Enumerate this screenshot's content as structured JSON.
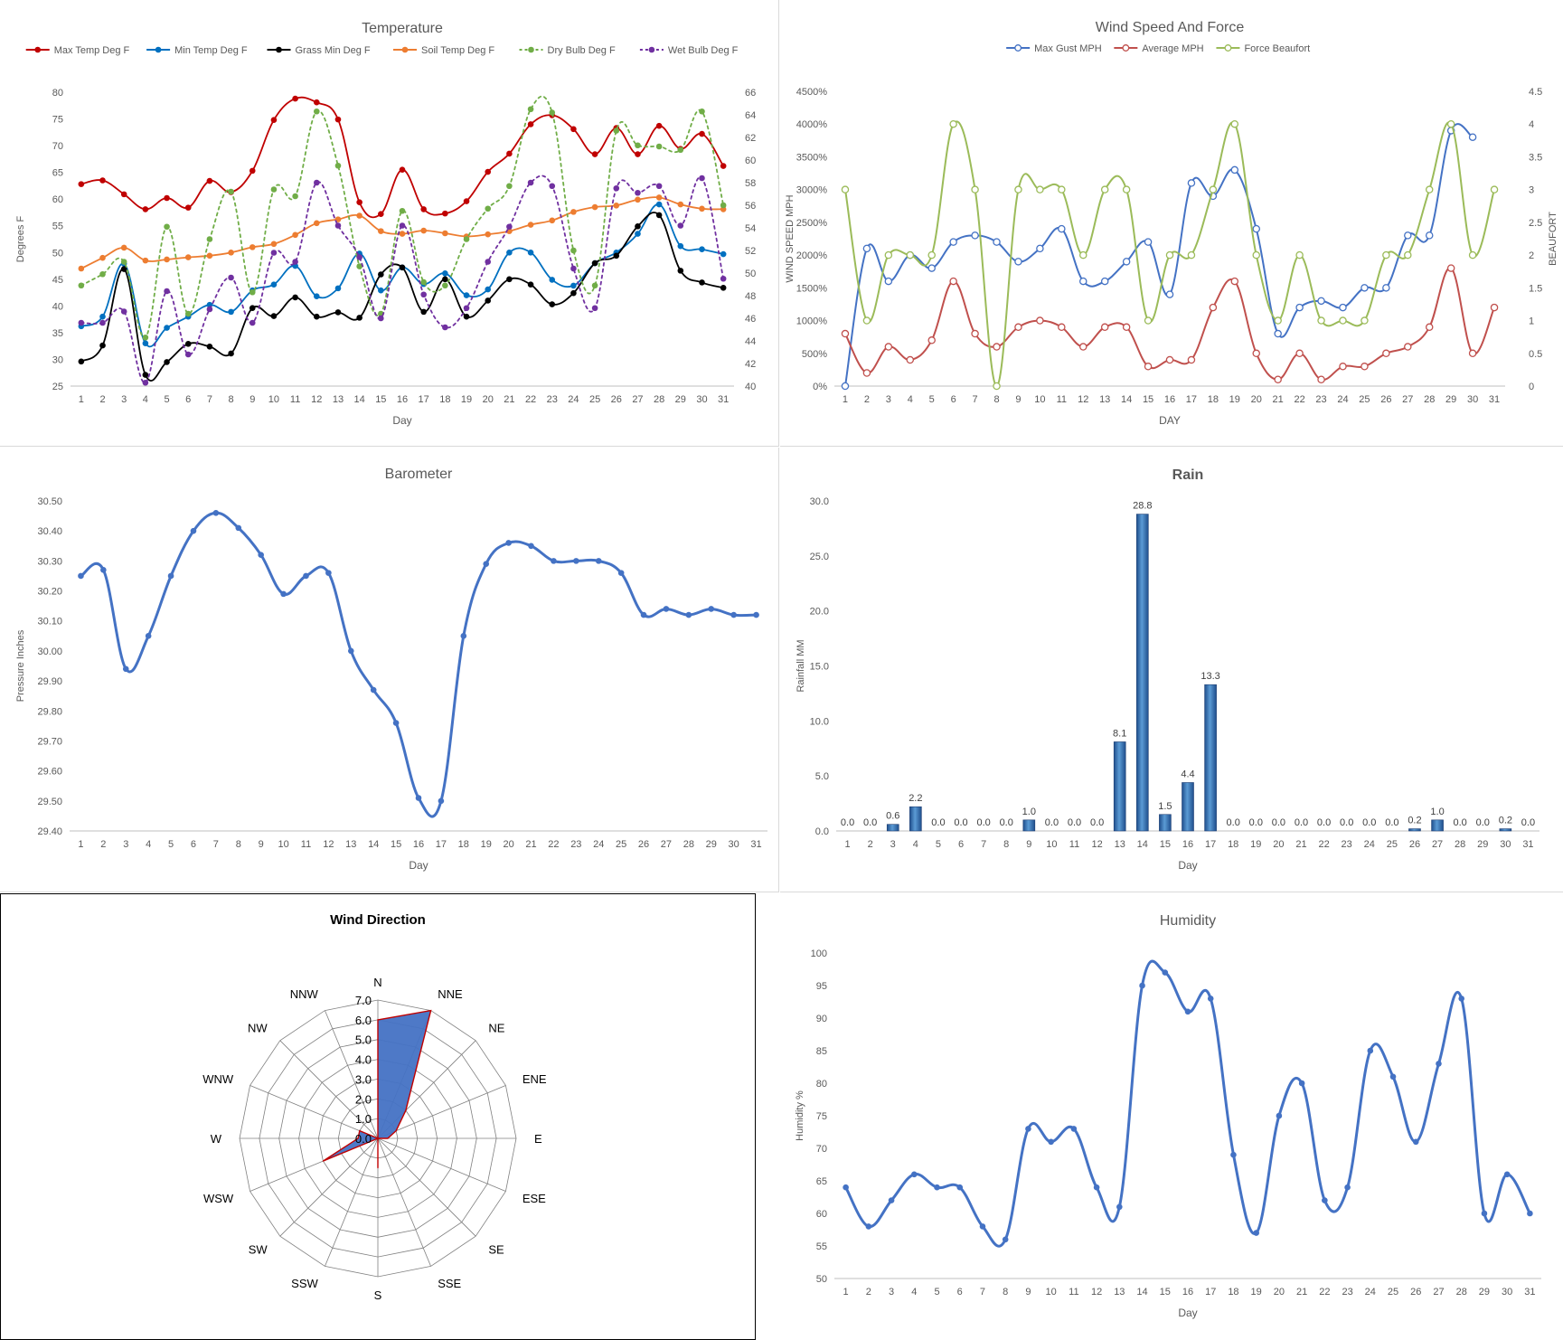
{
  "chart_data": [
    {
      "id": "temperature",
      "type": "line",
      "title": "Temperature",
      "xlabel": "Day",
      "ylabel": "Degrees F",
      "ylim": [
        25,
        80
      ],
      "y2lim": [
        40,
        66
      ],
      "x": [
        1,
        2,
        3,
        4,
        5,
        6,
        7,
        8,
        9,
        10,
        11,
        12,
        13,
        14,
        15,
        16,
        17,
        18,
        19,
        20,
        21,
        22,
        23,
        24,
        25,
        26,
        27,
        28,
        29,
        30,
        31
      ],
      "yticks": [
        25,
        30,
        35,
        40,
        45,
        50,
        55,
        60,
        65,
        70,
        75,
        80
      ],
      "y2ticks": [
        40,
        42,
        44,
        46,
        48,
        50,
        52,
        54,
        56,
        58,
        60,
        62,
        64,
        66
      ],
      "legend": "top",
      "series": [
        {
          "name": "Max Temp Deg F",
          "color": "#c00000",
          "dash": false,
          "axis": "left",
          "values": [
            62.8,
            63.5,
            60.9,
            58.1,
            60.2,
            58.4,
            63.4,
            61.3,
            65.3,
            74.8,
            78.8,
            78.1,
            74.9,
            59.4,
            57.2,
            65.5,
            58.1,
            57.3,
            59.6,
            65.1,
            68.5,
            74.0,
            75.7,
            73.1,
            68.4,
            73.3,
            68.4,
            73.7,
            69.4,
            72.2,
            66.2
          ]
        },
        {
          "name": "Min Temp Deg F",
          "color": "#0070c0",
          "dash": false,
          "axis": "left",
          "values": [
            36.2,
            38.0,
            47.9,
            33.0,
            35.9,
            38.0,
            40.2,
            38.9,
            42.9,
            44.0,
            47.5,
            41.8,
            43.3,
            49.8,
            42.9,
            47.2,
            44.1,
            46.1,
            42.0,
            43.1,
            50.0,
            50.0,
            44.9,
            43.8,
            48.0,
            50.0,
            53.5,
            59.0,
            51.2,
            50.6,
            49.7
          ]
        },
        {
          "name": "Grass Min Deg F",
          "color": "#000000",
          "dash": false,
          "axis": "left",
          "values": [
            29.6,
            32.6,
            46.9,
            27.1,
            29.5,
            32.9,
            32.4,
            31.1,
            39.6,
            38.1,
            41.6,
            38.0,
            38.8,
            37.8,
            45.9,
            47.2,
            38.9,
            45.0,
            38.0,
            41.0,
            45.0,
            44.0,
            40.3,
            42.4,
            48.0,
            49.4,
            54.9,
            57.0,
            46.6,
            44.4,
            43.4
          ]
        },
        {
          "name": "Soil Temp Deg F",
          "color": "#ed7d31",
          "dash": false,
          "axis": "left",
          "values": [
            47.0,
            49.0,
            50.9,
            48.5,
            48.7,
            49.1,
            49.4,
            50.0,
            51.0,
            51.6,
            53.3,
            55.5,
            56.2,
            56.9,
            54.0,
            53.5,
            54.1,
            53.6,
            53.0,
            53.4,
            54.0,
            55.2,
            56.0,
            57.6,
            58.5,
            58.8,
            59.9,
            60.3,
            59.0,
            58.2,
            58.1
          ]
        },
        {
          "name": "Dry Bulb Deg F",
          "color": "#70ad47",
          "dash": true,
          "axis": "right",
          "values": [
            48.9,
            49.9,
            51.0,
            44.3,
            54.1,
            46.4,
            53.0,
            57.2,
            48.3,
            57.4,
            56.8,
            64.3,
            59.5,
            50.6,
            46.4,
            55.5,
            49.2,
            48.9,
            53.0,
            55.7,
            57.7,
            64.5,
            64.2,
            52.0,
            48.9,
            62.6,
            61.3,
            61.2,
            60.9,
            64.3,
            56.0
          ]
        },
        {
          "name": "Wet Bulb Deg F",
          "color": "#7030a0",
          "dash": true,
          "axis": "right",
          "values": [
            45.6,
            45.6,
            46.6,
            40.3,
            48.4,
            42.8,
            46.8,
            49.6,
            45.6,
            51.8,
            51.0,
            58.0,
            54.2,
            51.4,
            46.0,
            54.2,
            48.1,
            45.2,
            46.9,
            51.0,
            54.1,
            58.0,
            57.7,
            50.4,
            46.9,
            57.5,
            57.1,
            57.7,
            54.2,
            58.4,
            49.5
          ]
        }
      ]
    },
    {
      "id": "wind",
      "type": "line",
      "title": "Wind Speed And Force",
      "xlabel": "DAY",
      "ylabel": "WIND SPEED MPH",
      "y2label": "BEAUFORT",
      "ylim": [
        0,
        4500
      ],
      "y2lim": [
        0,
        4.5
      ],
      "yticks": [
        "0%",
        "500%",
        "1000%",
        "1500%",
        "2000%",
        "2500%",
        "3000%",
        "3500%",
        "4000%",
        "4500%"
      ],
      "y2ticks": [
        "0",
        "0.5",
        "1",
        "1.5",
        "2",
        "2.5",
        "3",
        "3.5",
        "4",
        "4.5"
      ],
      "x": [
        1,
        2,
        3,
        4,
        5,
        6,
        7,
        8,
        9,
        10,
        11,
        12,
        13,
        14,
        15,
        16,
        17,
        18,
        19,
        20,
        21,
        22,
        23,
        24,
        25,
        26,
        27,
        28,
        29,
        30,
        31
      ],
      "legend": "top",
      "series": [
        {
          "name": "Max Gust MPH",
          "color": "#4472c4",
          "axis": "left",
          "values": [
            0,
            2100,
            1600,
            2000,
            1800,
            2200,
            2300,
            2200,
            1900,
            2100,
            2400,
            1600,
            1600,
            1900,
            2200,
            1400,
            3100,
            2900,
            3300,
            2400,
            800,
            1200,
            1300,
            1200,
            1500,
            1500,
            2300,
            2300,
            3900,
            3800,
            null
          ]
        },
        {
          "name": "Average MPH",
          "color": "#c0504d",
          "axis": "left",
          "values": [
            800,
            200,
            600,
            400,
            700,
            1600,
            800,
            600,
            900,
            1000,
            900,
            600,
            900,
            900,
            300,
            400,
            400,
            1200,
            1600,
            500,
            100,
            500,
            100,
            300,
            300,
            500,
            600,
            900,
            1800,
            500,
            1200
          ]
        },
        {
          "name": "Force Beaufort",
          "color": "#9bbb59",
          "axis": "right",
          "values": [
            3,
            1,
            2,
            2,
            2,
            4,
            3,
            0,
            3,
            3,
            3,
            2,
            3,
            3,
            1,
            2,
            2,
            3,
            4,
            2,
            1,
            2,
            1,
            1,
            1,
            2,
            2,
            3,
            4,
            2,
            3
          ]
        }
      ]
    },
    {
      "id": "barometer",
      "type": "line",
      "title": "Barometer",
      "xlabel": "Day",
      "ylabel": "Pressure Inches",
      "ylim": [
        29.4,
        30.5
      ],
      "yticks": [
        "29.40",
        "29.50",
        "29.60",
        "29.70",
        "29.80",
        "29.90",
        "30.00",
        "30.10",
        "30.20",
        "30.30",
        "30.40",
        "30.50"
      ],
      "x": [
        1,
        2,
        3,
        4,
        5,
        6,
        7,
        8,
        9,
        10,
        11,
        12,
        13,
        14,
        15,
        16,
        17,
        18,
        19,
        20,
        21,
        22,
        23,
        24,
        25,
        26,
        27,
        28,
        29,
        30,
        31
      ],
      "series": [
        {
          "name": "",
          "color": "#4472c4",
          "values": [
            30.25,
            30.27,
            29.94,
            30.05,
            30.25,
            30.4,
            30.46,
            30.41,
            30.32,
            30.19,
            30.25,
            30.26,
            30.0,
            29.87,
            29.76,
            29.51,
            29.5,
            30.05,
            30.29,
            30.36,
            30.35,
            30.3,
            30.3,
            30.3,
            30.26,
            30.12,
            30.14,
            30.12,
            30.14,
            30.12,
            30.12
          ]
        }
      ]
    },
    {
      "id": "rain",
      "type": "bar",
      "title": "Rain",
      "xlabel": "Day",
      "ylabel": "Rainfall MM",
      "ylim": [
        0,
        30
      ],
      "yticks": [
        "0.0",
        "5.0",
        "10.0",
        "15.0",
        "20.0",
        "25.0",
        "30.0"
      ],
      "categories": [
        "1",
        "2",
        "3",
        "4",
        "5",
        "6",
        "7",
        "8",
        "9",
        "10",
        "11",
        "12",
        "13",
        "14",
        "15",
        "16",
        "17",
        "18",
        "19",
        "20",
        "21",
        "22",
        "23",
        "24",
        "25",
        "26",
        "27",
        "28",
        "29",
        "30",
        "31"
      ],
      "values": [
        0.0,
        0.0,
        0.6,
        2.2,
        0.0,
        0.0,
        0.0,
        0.0,
        1.0,
        0.0,
        0.0,
        0.0,
        8.1,
        28.8,
        1.5,
        4.4,
        13.3,
        0.0,
        0.0,
        0.0,
        0.0,
        0.0,
        0.0,
        0.0,
        0.0,
        0.2,
        1.0,
        0.0,
        0.0,
        0.2,
        0.0
      ],
      "labels": [
        "0.0",
        "0.0",
        "0.6",
        "2.2",
        "0.0",
        "0.0",
        "0.0",
        "0.0",
        "1.0",
        "0.0",
        "0.0",
        "0.0",
        "8.1",
        "28.8",
        "1.5",
        "4.4",
        "13.3",
        "0.0",
        "0.0",
        "0.0",
        "0.0",
        "0.0",
        "0.0",
        "0.0",
        "0.0",
        "0.2",
        "1.0",
        "0.0",
        "0.0",
        "0.2",
        "0.0"
      ],
      "color": "#2e5f9e"
    },
    {
      "id": "wind_direction",
      "type": "radar",
      "title": "Wind Direction",
      "rlim": [
        0,
        7
      ],
      "rticks": [
        "0.0",
        "1.0",
        "2.0",
        "3.0",
        "4.0",
        "5.0",
        "6.0",
        "7.0"
      ],
      "categories": [
        "N",
        "NNE",
        "NE",
        "ENE",
        "E",
        "ESE",
        "SE",
        "SSE",
        "S",
        "SSW",
        "SW",
        "WSW",
        "W",
        "WNW",
        "NW",
        "NNW"
      ],
      "values": [
        6.0,
        7.0,
        2.0,
        1.0,
        0.5,
        0.0,
        0.0,
        0.0,
        1.5,
        0.0,
        0.0,
        3.0,
        1.0,
        1.0,
        0.0,
        0.0
      ],
      "color": "#4472c4",
      "line_color": "#c00000"
    },
    {
      "id": "humidity",
      "type": "line",
      "title": "Humidity",
      "xlabel": "Day",
      "ylabel": "Humidity %",
      "ylim": [
        50,
        100
      ],
      "yticks": [
        "50",
        "55",
        "60",
        "65",
        "70",
        "75",
        "80",
        "85",
        "90",
        "95",
        "100"
      ],
      "x": [
        1,
        2,
        3,
        4,
        5,
        6,
        7,
        8,
        9,
        10,
        11,
        12,
        13,
        14,
        15,
        16,
        17,
        18,
        19,
        20,
        21,
        22,
        23,
        24,
        25,
        26,
        27,
        28,
        29,
        30,
        31
      ],
      "series": [
        {
          "name": "",
          "color": "#4472c4",
          "values": [
            64,
            58,
            62,
            66,
            64,
            64,
            58,
            56,
            73,
            71,
            73,
            64,
            61,
            95,
            97,
            91,
            93,
            69,
            57,
            75,
            80,
            62,
            64,
            85,
            81,
            71,
            83,
            93,
            60,
            66,
            60
          ]
        }
      ]
    }
  ]
}
